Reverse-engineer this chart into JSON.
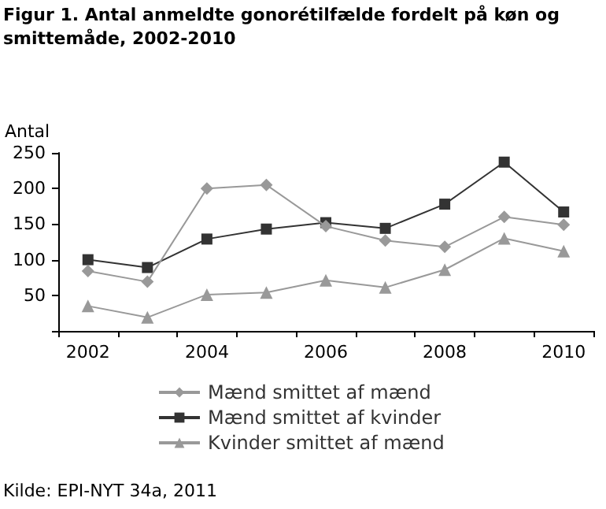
{
  "chart_data": {
    "type": "line",
    "title": "Figur 1. Antal anmeldte gonorétilfælde fordelt på køn og smittemåde, 2002-2010",
    "ylabel": "Antal",
    "annotations": [
      "Kilde: EPI-NYT 34a, 2011"
    ],
    "categories": [
      "2002",
      null,
      "2004",
      null,
      "2006",
      null,
      "2008",
      null,
      "2010"
    ],
    "series": [
      {
        "name": "Mænd smittet af mænd",
        "color": "#999999",
        "marker": "diamond",
        "values": [
          84,
          69,
          200,
          205,
          147,
          127,
          118,
          160,
          149
        ]
      },
      {
        "name": "Mænd smittet af kvinder",
        "color": "#333333",
        "marker": "square",
        "values": [
          100,
          89,
          129,
          143,
          152,
          144,
          178,
          237,
          167
        ]
      },
      {
        "name": "Kvinder smittet af mænd",
        "color": "#999999",
        "marker": "triangle",
        "values": [
          35,
          19,
          51,
          54,
          71,
          61,
          86,
          130,
          112
        ]
      }
    ],
    "ylim": [
      0,
      250
    ],
    "yticks": [
      {
        "value": 0,
        "label": null
      },
      50,
      100,
      150,
      200,
      250
    ],
    "grid": false,
    "legend": "bottom"
  }
}
